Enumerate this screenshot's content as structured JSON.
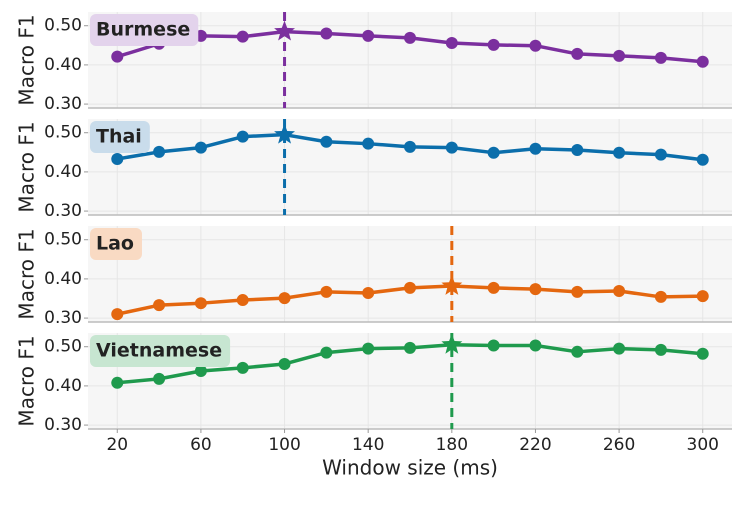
{
  "chart_data": [
    {
      "type": "line",
      "title": "Burmese",
      "ylabel": "Macro F1",
      "color": "#7b2f9e",
      "label_bg": "#e3d3ec",
      "x": [
        20,
        40,
        60,
        80,
        100,
        120,
        140,
        160,
        180,
        200,
        220,
        240,
        260,
        280,
        300
      ],
      "values": [
        0.421,
        0.454,
        0.474,
        0.472,
        0.485,
        0.48,
        0.474,
        0.469,
        0.456,
        0.451,
        0.449,
        0.428,
        0.423,
        0.418,
        0.408
      ],
      "xlim": [
        6,
        314
      ],
      "xticks": [
        20,
        60,
        100,
        140,
        180,
        220,
        260,
        300
      ],
      "ylim": [
        0.29,
        0.535
      ],
      "yticks": [
        {
          "value": 0.3,
          "label": "0.30"
        },
        {
          "value": 0.4,
          "label": "0.40"
        },
        {
          "value": 0.5,
          "label": "0.50"
        }
      ],
      "grid": true
    },
    {
      "type": "line",
      "title": "Thai",
      "ylabel": "Macro F1",
      "color": "#0b6eab",
      "label_bg": "#c9dceb",
      "x": [
        20,
        40,
        60,
        80,
        100,
        120,
        140,
        160,
        180,
        200,
        220,
        240,
        260,
        280,
        300
      ],
      "values": [
        0.433,
        0.451,
        0.462,
        0.49,
        0.495,
        0.477,
        0.472,
        0.464,
        0.462,
        0.449,
        0.459,
        0.456,
        0.449,
        0.444,
        0.431
      ],
      "xlim": [
        6,
        314
      ],
      "xticks": [
        20,
        60,
        100,
        140,
        180,
        220,
        260,
        300
      ],
      "ylim": [
        0.29,
        0.535
      ],
      "yticks": [
        {
          "value": 0.3,
          "label": "0.30"
        },
        {
          "value": 0.4,
          "label": "0.40"
        },
        {
          "value": 0.5,
          "label": "0.50"
        }
      ],
      "grid": true
    },
    {
      "type": "line",
      "title": "Lao",
      "ylabel": "Macro F1",
      "color": "#e4670f",
      "label_bg": "#f9dac3",
      "x": [
        20,
        40,
        60,
        80,
        100,
        120,
        140,
        160,
        180,
        200,
        220,
        240,
        260,
        280,
        300
      ],
      "values": [
        0.31,
        0.333,
        0.338,
        0.346,
        0.351,
        0.367,
        0.364,
        0.377,
        0.382,
        0.377,
        0.374,
        0.367,
        0.369,
        0.354,
        0.356
      ],
      "xlim": [
        6,
        314
      ],
      "xticks": [
        20,
        60,
        100,
        140,
        180,
        220,
        260,
        300
      ],
      "ylim": [
        0.29,
        0.535
      ],
      "yticks": [
        {
          "value": 0.3,
          "label": "0.30"
        },
        {
          "value": 0.4,
          "label": "0.40"
        },
        {
          "value": 0.5,
          "label": "0.50"
        }
      ],
      "grid": true
    },
    {
      "type": "line",
      "title": "Vietnamese",
      "ylabel": "Macro F1",
      "xlabel": "Window size (ms)",
      "color": "#1f9a4d",
      "label_bg": "#c7e6d1",
      "x": [
        20,
        40,
        60,
        80,
        100,
        120,
        140,
        160,
        180,
        200,
        220,
        240,
        260,
        280,
        300
      ],
      "values": [
        0.408,
        0.418,
        0.438,
        0.446,
        0.456,
        0.485,
        0.495,
        0.497,
        0.505,
        0.503,
        0.503,
        0.487,
        0.495,
        0.492,
        0.482
      ],
      "xlim": [
        6,
        314
      ],
      "xticks": [
        20,
        60,
        100,
        140,
        180,
        220,
        260,
        300
      ],
      "ylim": [
        0.29,
        0.535
      ],
      "yticks": [
        {
          "value": 0.3,
          "label": "0.30"
        },
        {
          "value": 0.4,
          "label": "0.40"
        },
        {
          "value": 0.5,
          "label": "0.50"
        }
      ],
      "grid": true
    }
  ]
}
